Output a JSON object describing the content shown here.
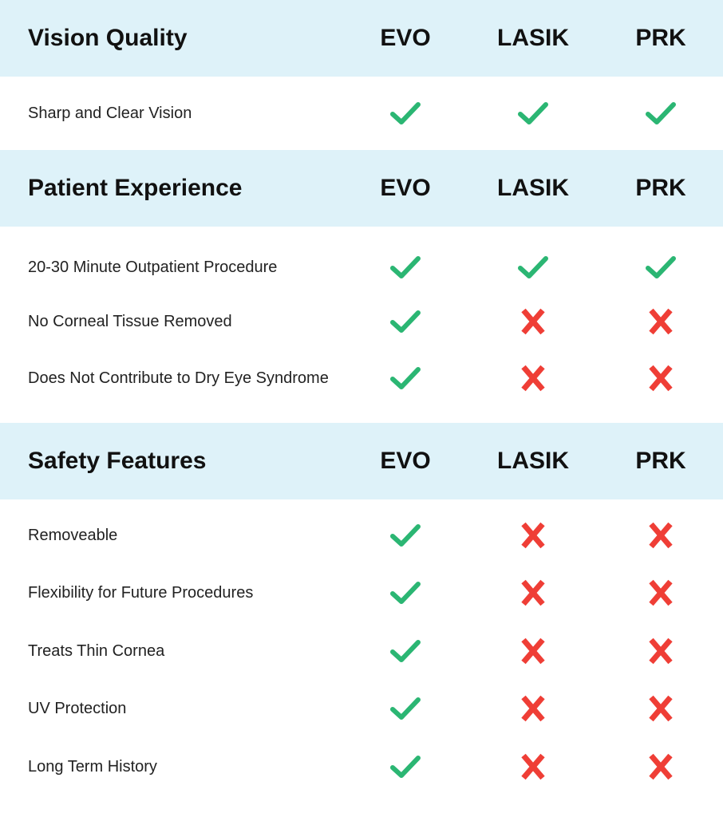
{
  "columns": [
    "EVO",
    "LASIK",
    "PRK"
  ],
  "colors": {
    "header_bg": "#def2f9",
    "check": "#2bb673",
    "cross": "#ef3e36"
  },
  "icons": {
    "yes": "check-icon",
    "no": "cross-icon"
  },
  "sections": [
    {
      "title": "Vision Quality",
      "rows": [
        {
          "label": "Sharp and Clear Vision",
          "values": [
            true,
            true,
            true
          ]
        }
      ]
    },
    {
      "title": "Patient Experience",
      "rows": [
        {
          "label": "20-30 Minute Outpatient Procedure",
          "values": [
            true,
            true,
            true
          ]
        },
        {
          "label": "No Corneal Tissue Removed",
          "values": [
            true,
            false,
            false
          ]
        },
        {
          "label": "Does Not Contribute to Dry Eye Syndrome",
          "values": [
            true,
            false,
            false
          ]
        }
      ]
    },
    {
      "title": "Safety Features",
      "rows": [
        {
          "label": "Removeable",
          "values": [
            true,
            false,
            false
          ]
        },
        {
          "label": "Flexibility for Future Procedures",
          "values": [
            true,
            false,
            false
          ]
        },
        {
          "label": "Treats Thin Cornea",
          "values": [
            true,
            false,
            false
          ]
        },
        {
          "label": "UV Protection",
          "values": [
            true,
            false,
            false
          ]
        },
        {
          "label": "Long Term History",
          "values": [
            true,
            false,
            false
          ]
        }
      ]
    }
  ]
}
